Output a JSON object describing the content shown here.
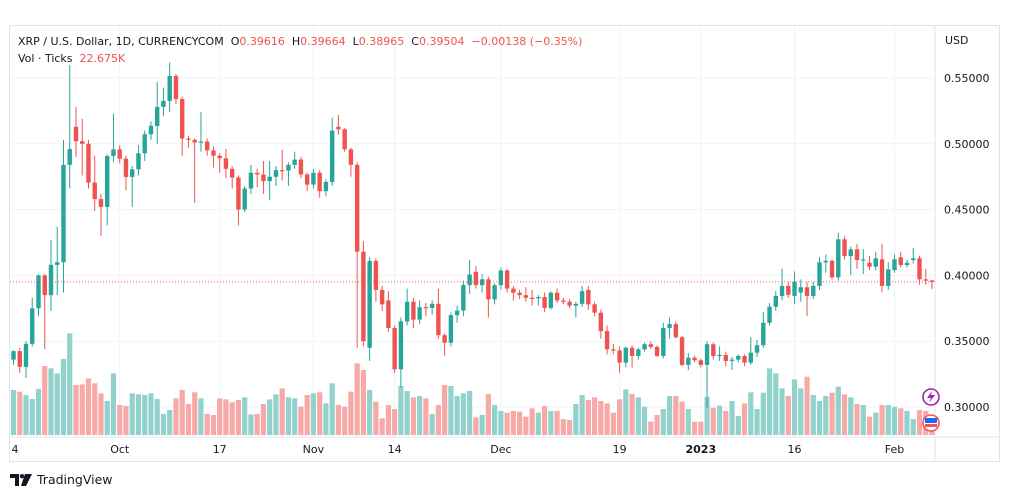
{
  "legend": {
    "symbol": "XRP / U.S. Dollar, 1D, CURRENCYCOM",
    "o_label": "O",
    "o": "0.39616",
    "h_label": "H",
    "h": "0.39664",
    "l_label": "L",
    "l": "0.38965",
    "c_label": "C",
    "c": "0.39504",
    "change": "−0.00138 (−0.35%)",
    "vol_label": "Vol · Ticks",
    "vol": "22.675K"
  },
  "branding": "TradingView",
  "colors": {
    "up": "#26a69a",
    "down": "#ef5350",
    "up_vol": "#92d2cc",
    "down_vol": "#f7a9a7",
    "grid": "#f0f3fa",
    "event": "#9c27b0"
  },
  "chart_data": {
    "type": "candlestick",
    "title": "XRP / U.S. Dollar, 1D, CURRENCYCOM",
    "ylabel": "USD",
    "ylim": [
      0.28,
      0.565
    ],
    "yticks": [
      "0.55000",
      "0.50000",
      "0.45000",
      "0.40000",
      "0.35000",
      "0.30000"
    ],
    "ytick_values": [
      0.55,
      0.5,
      0.45,
      0.4,
      0.35,
      0.3
    ],
    "xticks": [
      {
        "label": "4",
        "index": 0,
        "bold": false
      },
      {
        "label": "Oct",
        "index": 17,
        "bold": false
      },
      {
        "label": "17",
        "index": 33,
        "bold": false
      },
      {
        "label": "Nov",
        "index": 48,
        "bold": false
      },
      {
        "label": "14",
        "index": 61,
        "bold": false
      },
      {
        "label": "Dec",
        "index": 78,
        "bold": false
      },
      {
        "label": "19",
        "index": 97,
        "bold": false
      },
      {
        "label": "2023",
        "index": 110,
        "bold": true
      },
      {
        "label": "16",
        "index": 125,
        "bold": false
      },
      {
        "label": "Feb",
        "index": 141,
        "bold": false
      }
    ],
    "last_price": 0.39504,
    "grid": true,
    "columns": [
      "open",
      "high",
      "low",
      "close",
      "volume"
    ],
    "candles": [
      [
        0.336,
        0.343,
        0.332,
        0.3425,
        135
      ],
      [
        0.3425,
        0.345,
        0.326,
        0.3305,
        130
      ],
      [
        0.3305,
        0.35,
        0.322,
        0.348,
        120
      ],
      [
        0.348,
        0.383,
        0.346,
        0.375,
        108
      ],
      [
        0.375,
        0.401,
        0.369,
        0.4,
        138
      ],
      [
        0.4,
        0.401,
        0.344,
        0.385,
        207
      ],
      [
        0.385,
        0.427,
        0.373,
        0.408,
        200
      ],
      [
        0.408,
        0.437,
        0.385,
        0.41,
        185
      ],
      [
        0.41,
        0.503,
        0.387,
        0.484,
        228
      ],
      [
        0.484,
        0.56,
        0.466,
        0.496,
        305
      ],
      [
        0.513,
        0.528,
        0.49,
        0.502,
        150
      ],
      [
        0.502,
        0.519,
        0.476,
        0.5,
        152
      ],
      [
        0.5,
        0.503,
        0.466,
        0.4705,
        170
      ],
      [
        0.4705,
        0.491,
        0.449,
        0.458,
        155
      ],
      [
        0.458,
        0.462,
        0.43,
        0.452,
        125
      ],
      [
        0.452,
        0.492,
        0.438,
        0.4907,
        102
      ],
      [
        0.4907,
        0.523,
        0.486,
        0.4958,
        185
      ],
      [
        0.4958,
        0.499,
        0.485,
        0.4887,
        90
      ],
      [
        0.4887,
        0.491,
        0.4646,
        0.4748,
        87
      ],
      [
        0.4748,
        0.483,
        0.452,
        0.4806,
        125
      ],
      [
        0.4806,
        0.499,
        0.476,
        0.4928,
        122
      ],
      [
        0.4928,
        0.51,
        0.487,
        0.5072,
        120
      ],
      [
        0.5072,
        0.517,
        0.503,
        0.5136,
        125
      ],
      [
        0.5136,
        0.547,
        0.5,
        0.528,
        108
      ],
      [
        0.528,
        0.5427,
        0.521,
        0.5326,
        63
      ],
      [
        0.5326,
        0.5618,
        0.524,
        0.5516,
        75
      ],
      [
        0.5516,
        0.553,
        0.53,
        0.534,
        110
      ],
      [
        0.534,
        0.536,
        0.491,
        0.504,
        135
      ],
      [
        0.504,
        0.506,
        0.497,
        0.503,
        93
      ],
      [
        0.503,
        0.504,
        0.455,
        0.501,
        128
      ],
      [
        0.501,
        0.524,
        0.494,
        0.5017,
        110
      ],
      [
        0.5017,
        0.504,
        0.491,
        0.495,
        63
      ],
      [
        0.495,
        0.498,
        0.482,
        0.491,
        60
      ],
      [
        0.491,
        0.493,
        0.478,
        0.489,
        110
      ],
      [
        0.489,
        0.496,
        0.474,
        0.481,
        107
      ],
      [
        0.481,
        0.483,
        0.466,
        0.4744,
        98
      ],
      [
        0.4744,
        0.476,
        0.438,
        0.45,
        105
      ],
      [
        0.45,
        0.468,
        0.448,
        0.466,
        113
      ],
      [
        0.466,
        0.484,
        0.462,
        0.478,
        62
      ],
      [
        0.478,
        0.481,
        0.467,
        0.4767,
        63
      ],
      [
        0.4767,
        0.487,
        0.462,
        0.4716,
        93
      ],
      [
        0.4716,
        0.487,
        0.457,
        0.475,
        107
      ],
      [
        0.475,
        0.483,
        0.468,
        0.48,
        122
      ],
      [
        0.48,
        0.4955,
        0.472,
        0.4797,
        140
      ],
      [
        0.4797,
        0.486,
        0.468,
        0.484,
        113
      ],
      [
        0.484,
        0.494,
        0.481,
        0.488,
        110
      ],
      [
        0.488,
        0.49,
        0.474,
        0.4767,
        85
      ],
      [
        0.4767,
        0.478,
        0.464,
        0.469,
        120
      ],
      [
        0.469,
        0.481,
        0.466,
        0.478,
        125
      ],
      [
        0.478,
        0.48,
        0.459,
        0.464,
        128
      ],
      [
        0.464,
        0.473,
        0.46,
        0.471,
        95
      ],
      [
        0.471,
        0.52,
        0.468,
        0.51,
        155
      ],
      [
        0.513,
        0.522,
        0.507,
        0.511,
        90
      ],
      [
        0.511,
        0.512,
        0.494,
        0.4958,
        85
      ],
      [
        0.4958,
        0.497,
        0.475,
        0.484,
        130
      ],
      [
        0.484,
        0.486,
        0.345,
        0.418,
        215
      ],
      [
        0.418,
        0.426,
        0.346,
        0.35,
        195
      ],
      [
        0.345,
        0.414,
        0.335,
        0.411,
        135
      ],
      [
        0.411,
        0.413,
        0.38,
        0.389,
        100
      ],
      [
        0.389,
        0.392,
        0.373,
        0.378,
        50
      ],
      [
        0.381,
        0.388,
        0.357,
        0.36,
        90
      ],
      [
        0.36,
        0.362,
        0.326,
        0.3286,
        78
      ],
      [
        0.3286,
        0.368,
        0.3147,
        0.3651,
        147
      ],
      [
        0.365,
        0.39,
        0.362,
        0.38,
        132
      ],
      [
        0.38,
        0.383,
        0.36,
        0.3664,
        113
      ],
      [
        0.3664,
        0.381,
        0.363,
        0.3759,
        117
      ],
      [
        0.3759,
        0.379,
        0.369,
        0.3753,
        110
      ],
      [
        0.3753,
        0.381,
        0.37,
        0.3784,
        63
      ],
      [
        0.3784,
        0.3898,
        0.352,
        0.3546,
        90
      ],
      [
        0.3546,
        0.356,
        0.339,
        0.3488,
        150
      ],
      [
        0.3488,
        0.372,
        0.346,
        0.3698,
        147
      ],
      [
        0.3698,
        0.377,
        0.364,
        0.3733,
        117
      ],
      [
        0.3733,
        0.396,
        0.369,
        0.3926,
        125
      ],
      [
        0.3926,
        0.412,
        0.386,
        0.4007,
        132
      ],
      [
        0.4027,
        0.407,
        0.39,
        0.3926,
        53
      ],
      [
        0.3926,
        0.401,
        0.387,
        0.397,
        60
      ],
      [
        0.397,
        0.399,
        0.368,
        0.3818,
        123
      ],
      [
        0.3818,
        0.394,
        0.378,
        0.3926,
        90
      ],
      [
        0.3926,
        0.406,
        0.389,
        0.4037,
        72
      ],
      [
        0.4037,
        0.405,
        0.387,
        0.39,
        67
      ],
      [
        0.39,
        0.392,
        0.381,
        0.3868,
        72
      ],
      [
        0.3868,
        0.389,
        0.382,
        0.385,
        70
      ],
      [
        0.385,
        0.391,
        0.38,
        0.383,
        55
      ],
      [
        0.383,
        0.389,
        0.377,
        0.3826,
        80
      ],
      [
        0.3826,
        0.385,
        0.377,
        0.3836,
        67
      ],
      [
        0.3836,
        0.387,
        0.372,
        0.3753,
        87
      ],
      [
        0.3753,
        0.388,
        0.374,
        0.3868,
        72
      ],
      [
        0.3868,
        0.39,
        0.379,
        0.381,
        72
      ],
      [
        0.381,
        0.383,
        0.378,
        0.38,
        48
      ],
      [
        0.38,
        0.382,
        0.375,
        0.377,
        45
      ],
      [
        0.377,
        0.38,
        0.368,
        0.3784,
        93
      ],
      [
        0.3784,
        0.392,
        0.376,
        0.388,
        120
      ],
      [
        0.389,
        0.392,
        0.374,
        0.378,
        105
      ],
      [
        0.378,
        0.38,
        0.369,
        0.3717,
        113
      ],
      [
        0.3717,
        0.374,
        0.352,
        0.3577,
        102
      ],
      [
        0.3577,
        0.362,
        0.34,
        0.3438,
        95
      ],
      [
        0.3438,
        0.348,
        0.34,
        0.343,
        67
      ],
      [
        0.343,
        0.346,
        0.326,
        0.3337,
        107
      ],
      [
        0.3337,
        0.346,
        0.33,
        0.345,
        137
      ],
      [
        0.345,
        0.347,
        0.33,
        0.3388,
        123
      ],
      [
        0.3388,
        0.345,
        0.336,
        0.3438,
        113
      ],
      [
        0.3438,
        0.349,
        0.342,
        0.3477,
        85
      ],
      [
        0.3477,
        0.35,
        0.344,
        0.3456,
        40
      ],
      [
        0.3456,
        0.347,
        0.338,
        0.3388,
        60
      ],
      [
        0.3388,
        0.364,
        0.337,
        0.36,
        78
      ],
      [
        0.36,
        0.368,
        0.352,
        0.363,
        117
      ],
      [
        0.363,
        0.365,
        0.352,
        0.353,
        117
      ],
      [
        0.353,
        0.354,
        0.331,
        0.332,
        100
      ],
      [
        0.332,
        0.341,
        0.328,
        0.3375,
        78
      ],
      [
        0.3375,
        0.339,
        0.334,
        0.3355,
        40
      ],
      [
        0.3355,
        0.337,
        0.33,
        0.332,
        40
      ],
      [
        0.332,
        0.35,
        0.299,
        0.3477,
        115
      ],
      [
        0.3477,
        0.349,
        0.336,
        0.3388,
        82
      ],
      [
        0.3388,
        0.346,
        0.335,
        0.3396,
        88
      ],
      [
        0.3396,
        0.342,
        0.331,
        0.335,
        72
      ],
      [
        0.335,
        0.338,
        0.328,
        0.336,
        102
      ],
      [
        0.336,
        0.34,
        0.334,
        0.3388,
        57
      ],
      [
        0.3388,
        0.34,
        0.331,
        0.3337,
        95
      ],
      [
        0.3337,
        0.353,
        0.332,
        0.3413,
        128
      ],
      [
        0.3413,
        0.351,
        0.338,
        0.347,
        78
      ],
      [
        0.347,
        0.372,
        0.345,
        0.364,
        127
      ],
      [
        0.364,
        0.379,
        0.362,
        0.3762,
        200
      ],
      [
        0.3762,
        0.388,
        0.373,
        0.3844,
        185
      ],
      [
        0.3844,
        0.405,
        0.381,
        0.392,
        140
      ],
      [
        0.392,
        0.395,
        0.383,
        0.3853,
        117
      ],
      [
        0.3844,
        0.403,
        0.378,
        0.3952,
        167
      ],
      [
        0.387,
        0.397,
        0.38,
        0.391,
        140
      ],
      [
        0.391,
        0.395,
        0.369,
        0.3844,
        175
      ],
      [
        0.3844,
        0.395,
        0.382,
        0.392,
        120
      ],
      [
        0.392,
        0.414,
        0.389,
        0.4099,
        102
      ],
      [
        0.4099,
        0.416,
        0.402,
        0.4111,
        117
      ],
      [
        0.4111,
        0.412,
        0.397,
        0.3985,
        127
      ],
      [
        0.3985,
        0.4325,
        0.396,
        0.4274,
        145
      ],
      [
        0.4274,
        0.43,
        0.412,
        0.4147,
        122
      ],
      [
        0.4147,
        0.422,
        0.4,
        0.4198,
        113
      ],
      [
        0.4198,
        0.424,
        0.405,
        0.4117,
        93
      ],
      [
        0.4117,
        0.42,
        0.401,
        0.4122,
        90
      ],
      [
        0.4096,
        0.415,
        0.404,
        0.4066,
        55
      ],
      [
        0.4066,
        0.418,
        0.404,
        0.413,
        67
      ],
      [
        0.4122,
        0.424,
        0.387,
        0.392,
        90
      ],
      [
        0.392,
        0.41,
        0.389,
        0.4046,
        90
      ],
      [
        0.404,
        0.416,
        0.402,
        0.4122,
        85
      ],
      [
        0.4137,
        0.418,
        0.406,
        0.4079,
        80
      ],
      [
        0.4079,
        0.412,
        0.406,
        0.4096,
        72
      ],
      [
        0.4117,
        0.421,
        0.409,
        0.413,
        48
      ],
      [
        0.413,
        0.415,
        0.393,
        0.397,
        75
      ],
      [
        0.397,
        0.405,
        0.393,
        0.396,
        72
      ],
      [
        0.39616,
        0.39664,
        0.38965,
        0.39504,
        60
      ]
    ]
  }
}
